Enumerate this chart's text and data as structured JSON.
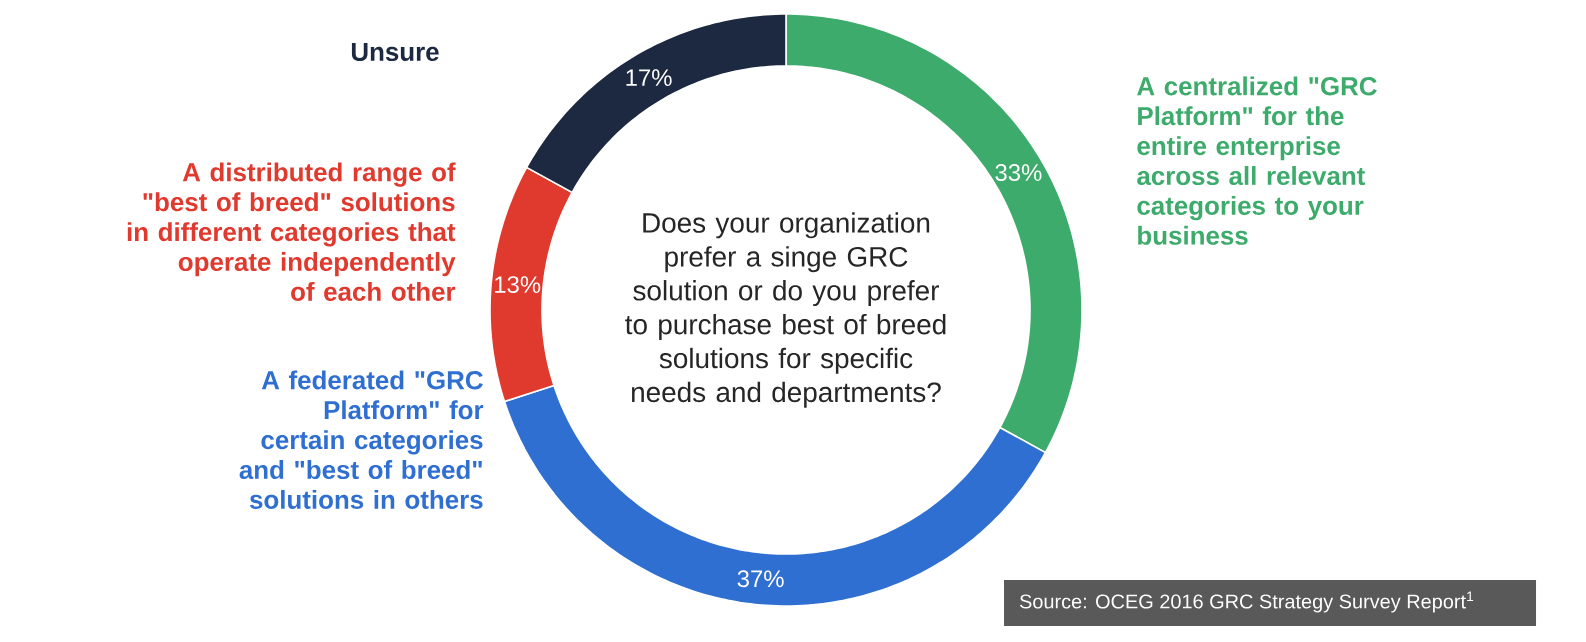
{
  "chart_data": {
    "type": "donut",
    "title": "Does your organization prefer a singe GRC solution or do you prefer to purchase best of breed solutions for specific needs and departments?",
    "categories": [
      "A centralized \"GRC Platform\" for the entire enterprise across all relevant categories to your business",
      "A federated \"GRC Platform\" for certain categories and \"best of breed\" solutions in others",
      "A distributed range of \"best of breed\" solutions in different categories that operate independently of each other",
      "Unsure"
    ],
    "values": [
      33,
      37,
      13,
      17
    ],
    "colors": [
      "#3dab6b",
      "#2f6fd1",
      "#e0392e",
      "#1c2940"
    ],
    "value_labels": [
      "33%",
      "37%",
      "13%",
      "17%"
    ],
    "annotations": [
      "Source: OCEG 2016 GRC Strategy Survey Report$^{1}$"
    ]
  }
}
